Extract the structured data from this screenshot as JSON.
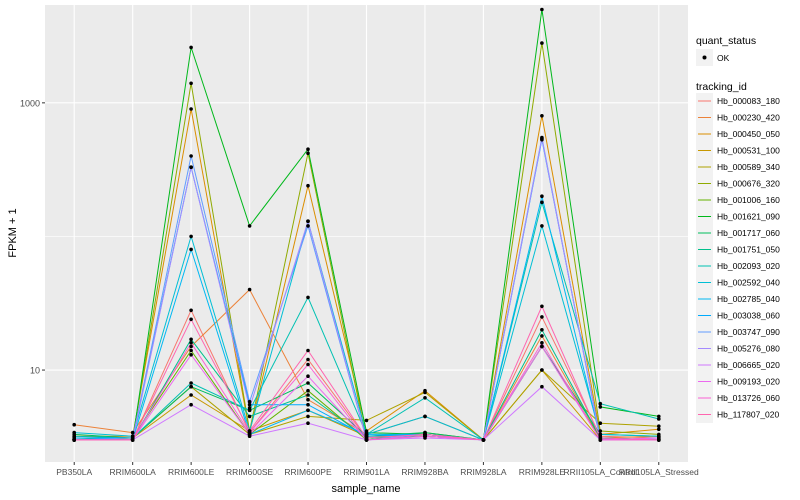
{
  "chart_data": {
    "type": "line",
    "xlabel": "sample_name",
    "ylabel": "FPKM + 1",
    "y_scale": "log10",
    "ylim": [
      2.05,
      5400
    ],
    "y_ticks": [
      10,
      1000
    ],
    "y_tick_labels": [
      "10",
      "1000"
    ],
    "categories": [
      "PB350LA",
      "RRIM600LA",
      "RRIM600LE",
      "RRIM600SE",
      "RRIM600PE",
      "RRIM901LA",
      "RRIM928BA",
      "RRIM928LA",
      "RRIM928LE",
      "RRII105LA_Control",
      "RRII105LA_Stressed"
    ],
    "grid": true,
    "legend_placement": "right",
    "shape_legend": {
      "title": "quant_status",
      "entries": [
        "OK"
      ]
    },
    "color_legend_title": "tracking_id",
    "series": [
      {
        "name": "Hb_000083_180",
        "color": "#F8766D",
        "values": [
          3.0,
          3.0,
          28,
          3.4,
          12,
          3.1,
          3.3,
          3.0,
          25,
          3.2,
          3.1
        ]
      },
      {
        "name": "Hb_000230_420",
        "color": "#EC8239",
        "values": [
          3.9,
          3.4,
          15,
          40,
          6,
          3.3,
          4.5,
          3.0,
          18,
          3.1,
          3.2
        ]
      },
      {
        "name": "Hb_000450_050",
        "color": "#DB8E00",
        "values": [
          3.2,
          3.2,
          900,
          3.4,
          240,
          3.5,
          7.0,
          3.0,
          800,
          3.3,
          3.6
        ]
      },
      {
        "name": "Hb_000531_100",
        "color": "#C79800",
        "values": [
          3.1,
          3.1,
          6.5,
          3.5,
          5.0,
          3.2,
          3.2,
          3.0,
          10,
          3.0,
          3.0
        ]
      },
      {
        "name": "Hb_000589_340",
        "color": "#AEA200",
        "values": [
          3.0,
          3.1,
          7.5,
          3.3,
          4.5,
          4.2,
          6.8,
          3.0,
          10,
          4.0,
          3.8
        ]
      },
      {
        "name": "Hb_000676_320",
        "color": "#8FAA00",
        "values": [
          3.0,
          3.1,
          1400,
          3.5,
          420,
          3.0,
          3.3,
          3.0,
          2800,
          3.5,
          3.3
        ]
      },
      {
        "name": "Hb_001006_160",
        "color": "#64B200",
        "values": [
          3.0,
          3.1,
          14,
          3.3,
          7.0,
          3.0,
          3.4,
          3.0,
          15,
          3.1,
          3.0
        ]
      },
      {
        "name": "Hb_001621_090",
        "color": "#00B81B",
        "values": [
          3.0,
          3.0,
          2600,
          120,
          450,
          3.4,
          3.3,
          3.0,
          5000,
          5.3,
          4.5
        ]
      },
      {
        "name": "Hb_001717_060",
        "color": "#00BD5C",
        "values": [
          3.3,
          3.1,
          7.5,
          5.0,
          8.0,
          3.2,
          3.4,
          3.0,
          15,
          3.3,
          3.2
        ]
      },
      {
        "name": "Hb_001751_050",
        "color": "#00C08B",
        "values": [
          3.1,
          3.0,
          17,
          4.5,
          6.5,
          3.1,
          3.2,
          3.0,
          20,
          3.1,
          3.0
        ]
      },
      {
        "name": "Hb_002093_020",
        "color": "#00C1B2",
        "values": [
          3.2,
          3.1,
          8.0,
          5.0,
          35,
          3.3,
          6.2,
          3.0,
          180,
          5.6,
          4.3
        ]
      },
      {
        "name": "Hb_002592_040",
        "color": "#00BFD5",
        "values": [
          3.4,
          3.2,
          100,
          3.5,
          130,
          3.3,
          4.5,
          3.0,
          120,
          3.3,
          3.2
        ]
      },
      {
        "name": "Hb_002785_040",
        "color": "#00B8F3",
        "values": [
          3.0,
          3.0,
          80,
          3.3,
          5.0,
          3.3,
          3.3,
          3.0,
          200,
          3.1,
          3.0
        ]
      },
      {
        "name": "Hb_003038_060",
        "color": "#00ABFD",
        "values": [
          3.1,
          3.1,
          330,
          5.5,
          5.5,
          3.2,
          3.3,
          3.0,
          530,
          3.1,
          3.0
        ]
      },
      {
        "name": "Hb_003747_090",
        "color": "#619CFF",
        "values": [
          3.0,
          3.1,
          400,
          5.8,
          120,
          3.0,
          3.2,
          3.0,
          550,
          3.0,
          3.1
        ]
      },
      {
        "name": "Hb_005276_080",
        "color": "#A58AFF",
        "values": [
          3.0,
          3.0,
          330,
          5.2,
          130,
          3.0,
          3.3,
          3.0,
          540,
          3.0,
          3.1
        ]
      },
      {
        "name": "Hb_006665_020",
        "color": "#D078FF",
        "values": [
          3.0,
          3.0,
          5.5,
          3.2,
          4.0,
          3.0,
          3.1,
          3.0,
          7.5,
          3.0,
          3.0
        ]
      },
      {
        "name": "Hb_009193_020",
        "color": "#EC69EF",
        "values": [
          3.0,
          3.0,
          13,
          3.3,
          9,
          3.0,
          3.2,
          3.0,
          15,
          3.0,
          3.1
        ]
      },
      {
        "name": "Hb_013726_060",
        "color": "#FA62D4",
        "values": [
          3.0,
          3.0,
          16,
          3.4,
          11,
          3.0,
          3.2,
          3.0,
          16,
          3.0,
          3.0
        ]
      },
      {
        "name": "Hb_117807_020",
        "color": "#FF65AF",
        "values": [
          3.0,
          3.0,
          24,
          3.5,
          14,
          3.1,
          3.3,
          3.0,
          30,
          3.1,
          3.0
        ]
      }
    ]
  }
}
